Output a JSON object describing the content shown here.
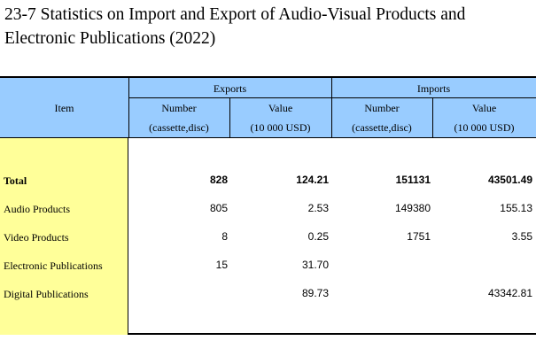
{
  "title": {
    "line1": "23-7  Statistics on Import and Export of Audio-Visual Products and",
    "line2": "Electronic Publications (2022)"
  },
  "table": {
    "item_header": "Item",
    "exports_header": "Exports",
    "imports_header": "Imports",
    "number_label": "Number",
    "number_unit": "(cassette,disc)",
    "value_label": "Value",
    "value_unit": "(10 000 USD)",
    "rows": [
      {
        "item": "Total",
        "exp_number": "828",
        "exp_value": "124.21",
        "imp_number": "151131",
        "imp_value": "43501.49"
      },
      {
        "item": "Audio Products",
        "exp_number": "805",
        "exp_value": "2.53",
        "imp_number": "149380",
        "imp_value": "155.13"
      },
      {
        "item": "Video Products",
        "exp_number": "8",
        "exp_value": "0.25",
        "imp_number": "1751",
        "imp_value": "3.55"
      },
      {
        "item": "Electronic Publications",
        "exp_number": "15",
        "exp_value": "31.70",
        "imp_number": "",
        "imp_value": ""
      },
      {
        "item": "Digital Publications",
        "exp_number": "",
        "exp_value": "89.73",
        "imp_number": "",
        "imp_value": "43342.81"
      }
    ]
  },
  "colors": {
    "header_bg": "#99ccff",
    "item_col_bg": "#ffff99"
  }
}
